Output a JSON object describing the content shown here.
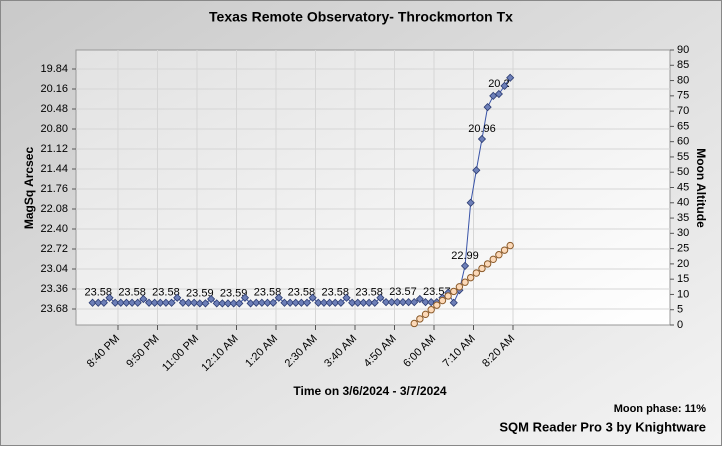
{
  "chart_data": {
    "type": "line",
    "title": "Texas Remote Observatory- Throckmorton Tx",
    "xlabel": "Time on 3/6/2024 - 3/7/2024",
    "ylabel": "MagSq Arcsec",
    "y2label": "Moon Altitude",
    "annotations": [
      "Moon phase: 11%",
      "SQM Reader Pro 3 by Knightware"
    ],
    "x": [
      1195,
      1205,
      1215,
      1225,
      1235,
      1245,
      1255,
      1265,
      1275,
      1285,
      1295,
      1305,
      1315,
      1325,
      1335,
      1345,
      1355,
      1365,
      1375,
      1385,
      1395,
      1405,
      1415,
      1425,
      1435,
      1445,
      1455,
      1465,
      1475,
      1485,
      1495,
      1505,
      1515,
      1525,
      1535,
      1545,
      1555,
      1565,
      1575,
      1585,
      1595,
      1605,
      1615,
      1625,
      1635,
      1645,
      1655,
      1665,
      1675,
      1685,
      1695,
      1705,
      1715,
      1725,
      1735,
      1745,
      1755,
      1765,
      1775,
      1785,
      1795,
      1805,
      1815,
      1825,
      1835,
      1845,
      1855,
      1865,
      1875,
      1885,
      1895,
      1905,
      1915,
      1925,
      1935
    ],
    "series": [
      {
        "name": "MagSq Arcsec",
        "color": "#3a54a8",
        "marker_color": "#6d7fb8",
        "axis": "y",
        "values": [
          23.58,
          23.58,
          23.58,
          23.5,
          23.58,
          23.58,
          23.58,
          23.58,
          23.58,
          23.52,
          23.58,
          23.58,
          23.58,
          23.58,
          23.58,
          23.5,
          23.58,
          23.58,
          23.58,
          23.59,
          23.59,
          23.52,
          23.59,
          23.59,
          23.59,
          23.59,
          23.59,
          23.5,
          23.59,
          23.58,
          23.58,
          23.58,
          23.58,
          23.5,
          23.58,
          23.58,
          23.58,
          23.58,
          23.58,
          23.5,
          23.58,
          23.58,
          23.58,
          23.58,
          23.58,
          23.5,
          23.58,
          23.58,
          23.58,
          23.58,
          23.58,
          23.5,
          23.57,
          23.57,
          23.57,
          23.57,
          23.57,
          23.57,
          23.52,
          23.57,
          23.57,
          23.57,
          23.5,
          23.42,
          23.58,
          23.38,
          22.99,
          21.98,
          21.46,
          20.96,
          20.45,
          20.27,
          20.24,
          20.11,
          19.98
        ],
        "value_labels": [
          null,
          "23.58",
          null,
          null,
          null,
          null,
          null,
          "23.58",
          null,
          null,
          null,
          null,
          null,
          "23.58",
          null,
          null,
          null,
          null,
          null,
          "23.59",
          null,
          null,
          null,
          null,
          null,
          "23.59",
          null,
          null,
          null,
          null,
          null,
          "23.58",
          null,
          null,
          null,
          null,
          null,
          "23.58",
          null,
          null,
          null,
          null,
          null,
          "23.58",
          null,
          null,
          null,
          null,
          null,
          "23.58",
          null,
          null,
          null,
          null,
          null,
          "23.57",
          null,
          null,
          null,
          null,
          null,
          "23.57",
          null,
          null,
          null,
          null,
          "22.99",
          null,
          null,
          "20.96",
          null,
          null,
          "20.2",
          null,
          null
        ]
      },
      {
        "name": "Moon Altitude",
        "color": "#8a5a2a",
        "marker_color": "#fcd9b8",
        "axis": "y2",
        "values": [
          null,
          null,
          null,
          null,
          null,
          null,
          null,
          null,
          null,
          null,
          null,
          null,
          null,
          null,
          null,
          null,
          null,
          null,
          null,
          null,
          null,
          null,
          null,
          null,
          null,
          null,
          null,
          null,
          null,
          null,
          null,
          null,
          null,
          null,
          null,
          null,
          null,
          null,
          null,
          null,
          null,
          null,
          null,
          null,
          null,
          null,
          null,
          null,
          null,
          null,
          null,
          null,
          null,
          null,
          null,
          null,
          null,
          0.5,
          2,
          3.5,
          5,
          6.5,
          8,
          9.5,
          11,
          12.5,
          14,
          15.5,
          17,
          18.5,
          20,
          21.5,
          23,
          24.5,
          26
        ]
      }
    ],
    "xlim": [
      1165.6,
      2218.2
    ],
    "xticks": [
      {
        "value": 1240,
        "label": "8:40 PM"
      },
      {
        "value": 1310,
        "label": "9:50 PM"
      },
      {
        "value": 1380,
        "label": "11:00 PM"
      },
      {
        "value": 1450,
        "label": "12:10 AM"
      },
      {
        "value": 1520,
        "label": "1:20 AM"
      },
      {
        "value": 1590,
        "label": "2:30 AM"
      },
      {
        "value": 1660,
        "label": "3:40 AM"
      },
      {
        "value": 1730,
        "label": "4:50 AM"
      },
      {
        "value": 1800,
        "label": "6:00 AM"
      },
      {
        "value": 1870,
        "label": "7:10 AM"
      },
      {
        "value": 1940,
        "label": "8:20 AM"
      }
    ],
    "ylim": [
      23.936,
      19.536
    ],
    "yticks": [
      19.84,
      20.16,
      20.48,
      {
        "value": 20.8,
        "label": "20.80"
      },
      21.12,
      21.44,
      21.76,
      22.08,
      {
        "value": 22.4,
        "label": "22.40"
      },
      22.72,
      23.04,
      23.36,
      23.68
    ],
    "y2lim": [
      0,
      90
    ],
    "y2ticks": [
      0,
      5,
      10,
      15,
      20,
      25,
      30,
      35,
      40,
      45,
      50,
      55,
      60,
      65,
      70,
      75,
      80,
      85,
      90
    ],
    "grid": true
  }
}
